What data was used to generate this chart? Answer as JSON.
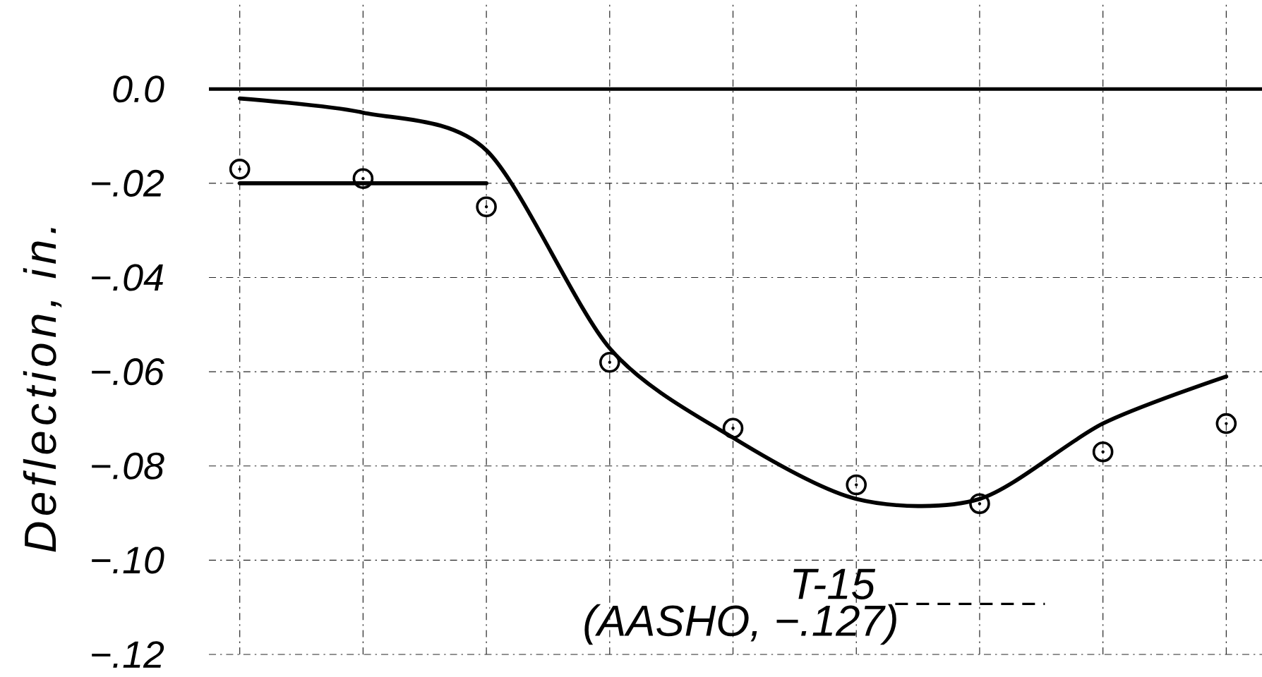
{
  "chart_data": {
    "type": "scatter",
    "ylabel": "Deflection, in.",
    "categories": [
      null,
      null,
      null,
      null,
      null,
      null,
      null,
      null,
      null
    ],
    "series": [
      {
        "color": "#000000",
        "marker": "circle",
        "values": [
          -0.017,
          -0.019,
          -0.025,
          -0.058,
          -0.072,
          -0.084,
          -0.088,
          -0.077,
          -0.071
        ]
      },
      {
        "type": "line",
        "color": "#000000",
        "marker": "none",
        "line_style": "solid",
        "values": [
          -0.002,
          -0.005,
          -0.013,
          -0.055,
          -0.074,
          -0.087,
          -0.087,
          -0.071,
          -0.061
        ]
      },
      {
        "type": "line",
        "color": "#000000",
        "marker": "none",
        "line_style": "solid",
        "values": [
          -0.02,
          -0.02,
          -0.02,
          null,
          null,
          null,
          null,
          null,
          null
        ]
      }
    ],
    "ylim": [
      -0.12,
      0.018
    ],
    "yticks": [
      {
        "value": 0,
        "label": "0.0"
      },
      {
        "value": -0.02,
        "label": "−.02"
      },
      {
        "value": -0.04,
        "label": "−.04"
      },
      {
        "value": -0.06,
        "label": "−.06"
      },
      {
        "value": -0.08,
        "label": "−.08"
      },
      {
        "value": -0.1,
        "label": "−.10"
      },
      {
        "value": -0.12,
        "label": "−.12"
      }
    ],
    "ref_lines": [
      {
        "axis": "y",
        "value": 0
      }
    ],
    "annotations": [
      "T-15",
      "(AASHO, −.127)"
    ],
    "grid": true,
    "tick_labels": "y"
  }
}
